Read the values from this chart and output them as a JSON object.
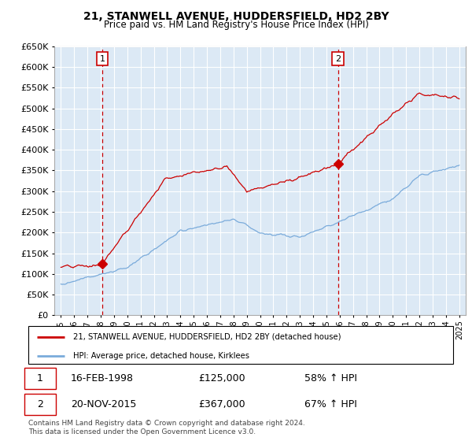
{
  "title_line1": "21, STANWELL AVENUE, HUDDERSFIELD, HD2 2BY",
  "title_line2": "Price paid vs. HM Land Registry's House Price Index (HPI)",
  "legend_line1": "21, STANWELL AVENUE, HUDDERSFIELD, HD2 2BY (detached house)",
  "legend_line2": "HPI: Average price, detached house, Kirklees",
  "footer": "Contains HM Land Registry data © Crown copyright and database right 2024.\nThis data is licensed under the Open Government Licence v3.0.",
  "sale1_date": 1998.12,
  "sale1_price": 125000,
  "sale1_label": "16-FEB-1998",
  "sale1_hpi_pct": "58% ↑ HPI",
  "sale2_date": 2015.88,
  "sale2_price": 367000,
  "sale2_label": "20-NOV-2015",
  "sale2_hpi_pct": "67% ↑ HPI",
  "plot_color_red": "#cc0000",
  "plot_color_blue": "#7aabdb",
  "background_color": "#dce9f5",
  "grid_color": "#ffffff",
  "ylim": [
    0,
    650000
  ],
  "xlim": [
    1994.5,
    2025.5
  ],
  "ytick_step": 50000,
  "title_fontsize": 10,
  "subtitle_fontsize": 9
}
